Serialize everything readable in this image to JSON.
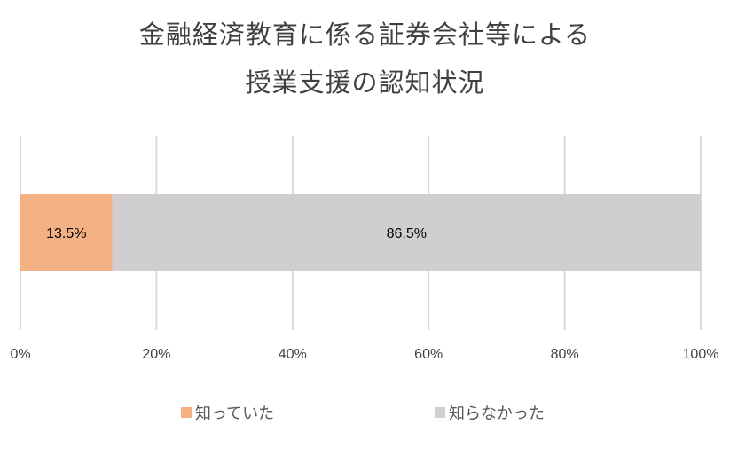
{
  "chart_data": {
    "type": "bar",
    "orientation": "horizontal",
    "stacked": true,
    "title": [
      "金融経済教育に係る証券会社等による",
      "授業支援の認知状況"
    ],
    "categories": [
      ""
    ],
    "series": [
      {
        "name": "知っていた",
        "values": [
          13.5
        ],
        "label": "13.5%",
        "color": "#F4B183"
      },
      {
        "name": "知らなかった",
        "values": [
          86.5
        ],
        "label": "86.5%",
        "color": "#D0CECE"
      }
    ],
    "xlim": [
      0,
      100
    ],
    "xticks": [
      "0%",
      "20%",
      "40%",
      "60%",
      "80%",
      "100%"
    ],
    "grid": true,
    "legend_position": "bottom"
  }
}
